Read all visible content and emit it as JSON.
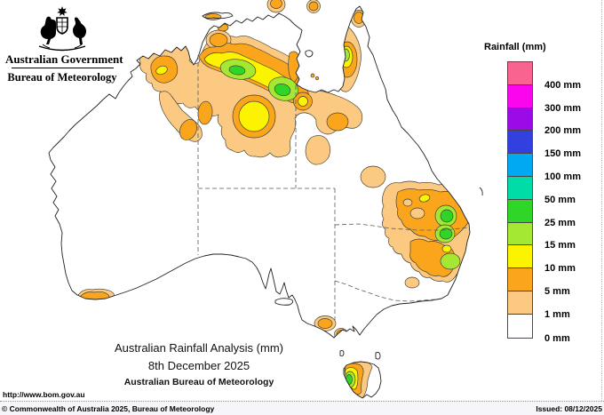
{
  "header": {
    "government": "Australian Government",
    "bureau": "Bureau of Meteorology"
  },
  "legend": {
    "title": "Rainfall (mm)",
    "entries": [
      {
        "label": "400 mm",
        "color": "#F9638F"
      },
      {
        "label": "300 mm",
        "color": "#F906EE"
      },
      {
        "label": "200 mm",
        "color": "#9C0AE8"
      },
      {
        "label": "150 mm",
        "color": "#3340E0"
      },
      {
        "label": "100 mm",
        "color": "#00A9F1"
      },
      {
        "label": "50 mm",
        "color": "#00DCA8"
      },
      {
        "label": "25 mm",
        "color": "#2FD628"
      },
      {
        "label": "15 mm",
        "color": "#A4E833"
      },
      {
        "label": "10 mm",
        "color": "#FBF300"
      },
      {
        "label": "5 mm",
        "color": "#FBA51D"
      },
      {
        "label": "1 mm",
        "color": "#FBC981"
      },
      {
        "label": "0 mm",
        "color": "#FFFFFF"
      }
    ]
  },
  "palette": {
    "tan": "#FBC981",
    "orange": "#FBA51D",
    "yellow": "#FBF300",
    "lgreen": "#A4E833",
    "green": "#2FD628"
  },
  "captions": {
    "title": "Australian Rainfall Analysis (mm)",
    "date": "8th December 2025",
    "org": "Australian Bureau of Meteorology"
  },
  "footer": {
    "url": "http://www.bom.gov.au",
    "copyright": "© Commonwealth of Australia 2025, Bureau of Meteorology",
    "issued": "Issued: 08/12/2025"
  }
}
